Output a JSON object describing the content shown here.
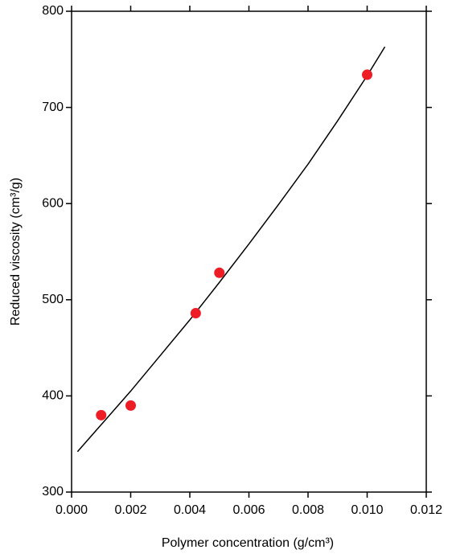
{
  "chart_data": {
    "type": "scatter",
    "x_label": "Polymer concentration (g/cm³)",
    "y_label": "Reduced viscosity (cm³/g)",
    "series": [
      {
        "type": "scatter",
        "color": "#ee1c25",
        "x": [
          0.001,
          0.002,
          0.0042,
          0.005,
          0.01
        ],
        "values": [
          380,
          390,
          486,
          528,
          734
        ]
      },
      {
        "type": "line",
        "color": "#000000",
        "x": [
          0.0002,
          0.001,
          0.002,
          0.003,
          0.004,
          0.005,
          0.006,
          0.007,
          0.008,
          0.009,
          0.01,
          0.0106
        ],
        "values": [
          342,
          370,
          405,
          442,
          479,
          518,
          558,
          599,
          641,
          686,
          733,
          763
        ]
      }
    ],
    "xlim": [
      0,
      0.012
    ],
    "ylim": [
      300,
      800
    ],
    "xticks": [
      {
        "value": 0,
        "label": "0.000"
      },
      {
        "value": 0.002,
        "label": "0.002"
      },
      {
        "value": 0.004,
        "label": "0.004"
      },
      {
        "value": 0.006,
        "label": "0.006"
      },
      {
        "value": 0.008,
        "label": "0.008"
      },
      {
        "value": 0.01,
        "label": "0.010"
      },
      {
        "value": 0.012,
        "label": "0.012"
      }
    ],
    "yticks": [
      300,
      400,
      500,
      600,
      700,
      800
    ],
    "grid": false
  }
}
